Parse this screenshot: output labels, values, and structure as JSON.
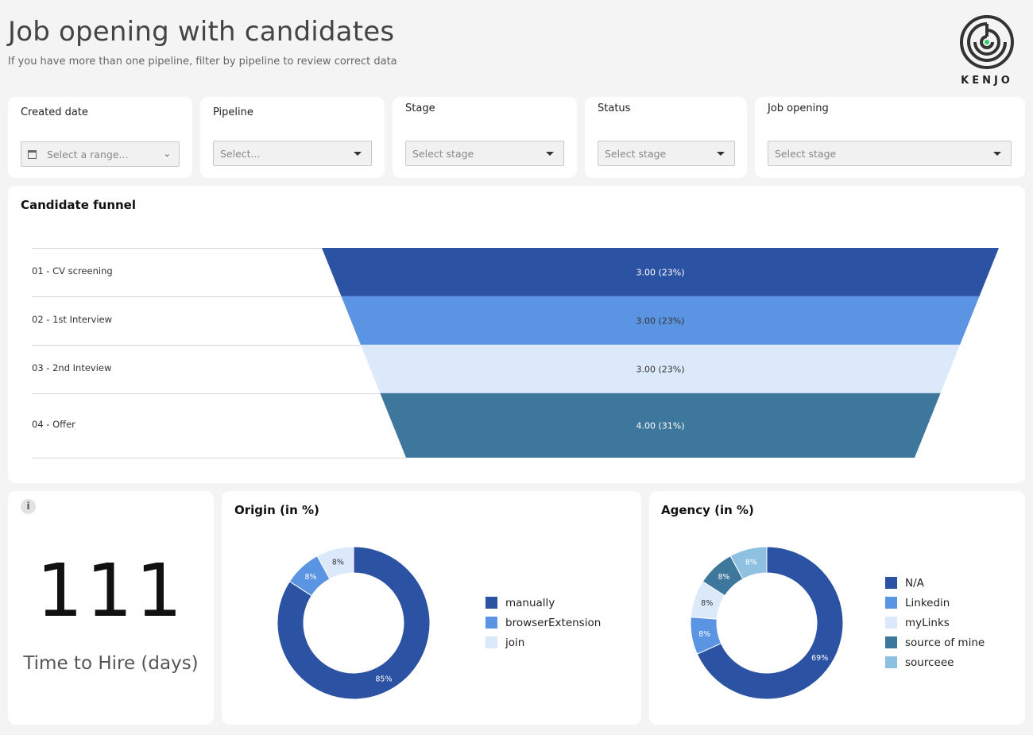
{
  "header": {
    "title": "Job opening with candidates",
    "subtitle": "If you have more than one pipeline, filter by pipeline to review correct data"
  },
  "logo": {
    "text": "KENJO"
  },
  "filters": {
    "created_date": {
      "label": "Created date",
      "placeholder": "Select a range..."
    },
    "pipeline": {
      "label": "Pipeline",
      "placeholder": "Select..."
    },
    "stage": {
      "label": "Stage",
      "placeholder": "Select stage"
    },
    "status": {
      "label": "Status",
      "placeholder": "Select stage"
    },
    "job_opening": {
      "label": "Job opening",
      "placeholder": "Select stage"
    }
  },
  "kpi": {
    "value": "111",
    "label": "Time to Hire (days)",
    "info": "i"
  },
  "colors": {
    "dark_blue": "#2c53a3",
    "mid_blue": "#5b94e2",
    "light_blue": "#dce9fb",
    "teal": "#3d779b",
    "sky": "#8ec0e2"
  },
  "chart_data": [
    {
      "type": "funnel",
      "title": "Candidate funnel",
      "categories": [
        "01 - CV screening",
        "02 - 1st Interview",
        "03 - 2nd Inteview",
        "04 - Offer"
      ],
      "values": [
        3,
        3,
        3,
        4
      ],
      "labels": [
        "3.00 (23%)",
        "3.00 (23%)",
        "3.00 (23%)",
        "4.00 (31%)"
      ],
      "colors": [
        "#2c53a3",
        "#5b94e2",
        "#dce9fb",
        "#3d779b"
      ],
      "label_colors": [
        "#ffffff",
        "#333333",
        "#333333",
        "#ffffff"
      ]
    },
    {
      "type": "pie",
      "title": "Origin (in %)",
      "categories": [
        "manually",
        "browserExtension",
        "join"
      ],
      "values": [
        85,
        8,
        8
      ],
      "labels": [
        "85%",
        "8%",
        "8%"
      ],
      "colors": [
        "#2c53a3",
        "#5b94e2",
        "#dce9fb"
      ]
    },
    {
      "type": "pie",
      "title": "Agency (in %)",
      "categories": [
        "N/A",
        "Linkedin",
        "myLinks",
        "source of mine",
        "sourceee"
      ],
      "values": [
        69,
        8,
        8,
        8,
        8
      ],
      "labels": [
        "69%",
        "8%",
        "8%",
        "8%",
        "8%"
      ],
      "colors": [
        "#2c53a3",
        "#5b94e2",
        "#dce9fb",
        "#3d779b",
        "#8ec0e2"
      ]
    }
  ]
}
